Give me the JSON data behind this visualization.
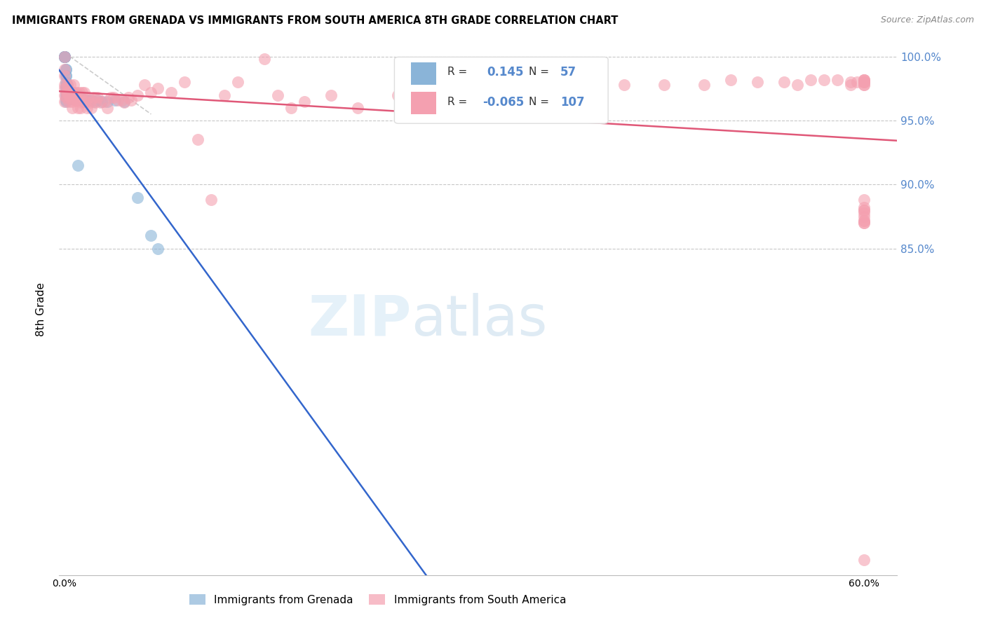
{
  "title": "IMMIGRANTS FROM GRENADA VS IMMIGRANTS FROM SOUTH AMERICA 8TH GRADE CORRELATION CHART",
  "source": "Source: ZipAtlas.com",
  "ylabel": "8th Grade",
  "R_blue": 0.145,
  "N_blue": 57,
  "R_pink": -0.065,
  "N_pink": 107,
  "blue_color": "#8ab4d8",
  "pink_color": "#f4a0b0",
  "trendline_blue_color": "#3366cc",
  "trendline_pink_color": "#e05878",
  "diagonal_color": "#cccccc",
  "background_color": "#ffffff",
  "grid_color": "#c8c8c8",
  "right_axis_color": "#5588cc",
  "legend_blue_label": "Immigrants from Grenada",
  "legend_pink_label": "Immigrants from South America",
  "xlim_min": -0.004,
  "xlim_max": 0.625,
  "ylim_min": 0.595,
  "ylim_max": 1.01,
  "yticks": [
    0.85,
    0.9,
    0.95,
    1.0
  ],
  "ytick_labels": [
    "85.0%",
    "90.0%",
    "95.0%",
    "100.0%"
  ],
  "xtick_positions": [
    0.0,
    0.1,
    0.2,
    0.3,
    0.4,
    0.5,
    0.6
  ],
  "blue_x": [
    0.0,
    0.0,
    0.0,
    0.0,
    0.0,
    0.0,
    0.0,
    0.0,
    0.001,
    0.001,
    0.001,
    0.001,
    0.001,
    0.001,
    0.001,
    0.001,
    0.001,
    0.001,
    0.001,
    0.001,
    0.001,
    0.001,
    0.002,
    0.002,
    0.002,
    0.002,
    0.003,
    0.003,
    0.004,
    0.004,
    0.005,
    0.005,
    0.006,
    0.006,
    0.007,
    0.007,
    0.008,
    0.009,
    0.01,
    0.011,
    0.012,
    0.013,
    0.014,
    0.015,
    0.016,
    0.018,
    0.02,
    0.022,
    0.025,
    0.028,
    0.032,
    0.038,
    0.045,
    0.055,
    0.065,
    0.07,
    0.01
  ],
  "blue_y": [
    1.0,
    1.0,
    1.0,
    1.0,
    1.0,
    1.0,
    1.0,
    1.0,
    0.99,
    0.99,
    0.985,
    0.985,
    0.98,
    0.978,
    0.975,
    0.975,
    0.972,
    0.97,
    0.97,
    0.968,
    0.966,
    0.965,
    0.978,
    0.975,
    0.972,
    0.97,
    0.97,
    0.968,
    0.97,
    0.968,
    0.97,
    0.967,
    0.972,
    0.968,
    0.97,
    0.967,
    0.97,
    0.968,
    0.968,
    0.97,
    0.968,
    0.966,
    0.966,
    0.965,
    0.966,
    0.966,
    0.966,
    0.965,
    0.966,
    0.965,
    0.965,
    0.966,
    0.965,
    0.89,
    0.86,
    0.85,
    0.915
  ],
  "pink_x": [
    0.0,
    0.0,
    0.0,
    0.0,
    0.0,
    0.0,
    0.0,
    0.001,
    0.001,
    0.002,
    0.002,
    0.003,
    0.003,
    0.004,
    0.004,
    0.005,
    0.005,
    0.006,
    0.006,
    0.007,
    0.007,
    0.008,
    0.008,
    0.009,
    0.009,
    0.01,
    0.01,
    0.011,
    0.011,
    0.012,
    0.012,
    0.013,
    0.014,
    0.015,
    0.016,
    0.017,
    0.018,
    0.019,
    0.02,
    0.022,
    0.023,
    0.025,
    0.027,
    0.03,
    0.032,
    0.035,
    0.037,
    0.04,
    0.043,
    0.045,
    0.048,
    0.05,
    0.055,
    0.06,
    0.065,
    0.07,
    0.08,
    0.09,
    0.1,
    0.11,
    0.12,
    0.13,
    0.15,
    0.16,
    0.17,
    0.18,
    0.2,
    0.22,
    0.25,
    0.27,
    0.3,
    0.32,
    0.35,
    0.38,
    0.4,
    0.42,
    0.45,
    0.48,
    0.5,
    0.52,
    0.54,
    0.55,
    0.56,
    0.57,
    0.58,
    0.59,
    0.59,
    0.595,
    0.6,
    0.6,
    0.6,
    0.6,
    0.6,
    0.6,
    0.6,
    0.6,
    0.6,
    0.6,
    0.6,
    0.6,
    0.6,
    0.6,
    0.6,
    0.6,
    0.6,
    0.6,
    0.6
  ],
  "pink_y": [
    1.0,
    0.99,
    0.985,
    0.978,
    0.975,
    0.97,
    0.965,
    0.972,
    0.968,
    0.978,
    0.972,
    0.97,
    0.965,
    0.978,
    0.972,
    0.972,
    0.967,
    0.965,
    0.96,
    0.978,
    0.972,
    0.97,
    0.966,
    0.972,
    0.966,
    0.966,
    0.96,
    0.972,
    0.966,
    0.964,
    0.96,
    0.972,
    0.965,
    0.972,
    0.965,
    0.96,
    0.968,
    0.964,
    0.96,
    0.968,
    0.964,
    0.968,
    0.964,
    0.965,
    0.96,
    0.968,
    0.968,
    0.966,
    0.966,
    0.964,
    0.968,
    0.966,
    0.97,
    0.978,
    0.972,
    0.975,
    0.972,
    0.98,
    0.935,
    0.888,
    0.97,
    0.98,
    0.998,
    0.97,
    0.96,
    0.965,
    0.97,
    0.96,
    0.97,
    0.98,
    0.99,
    0.972,
    0.988,
    0.972,
    0.978,
    0.978,
    0.978,
    0.978,
    0.982,
    0.98,
    0.98,
    0.978,
    0.982,
    0.982,
    0.982,
    0.98,
    0.978,
    0.98,
    0.982,
    0.98,
    0.98,
    0.978,
    0.982,
    0.978,
    0.98,
    0.982,
    0.88,
    0.872,
    0.87,
    0.87,
    0.872,
    0.875,
    0.878,
    0.88,
    0.882,
    0.888,
    0.607
  ]
}
